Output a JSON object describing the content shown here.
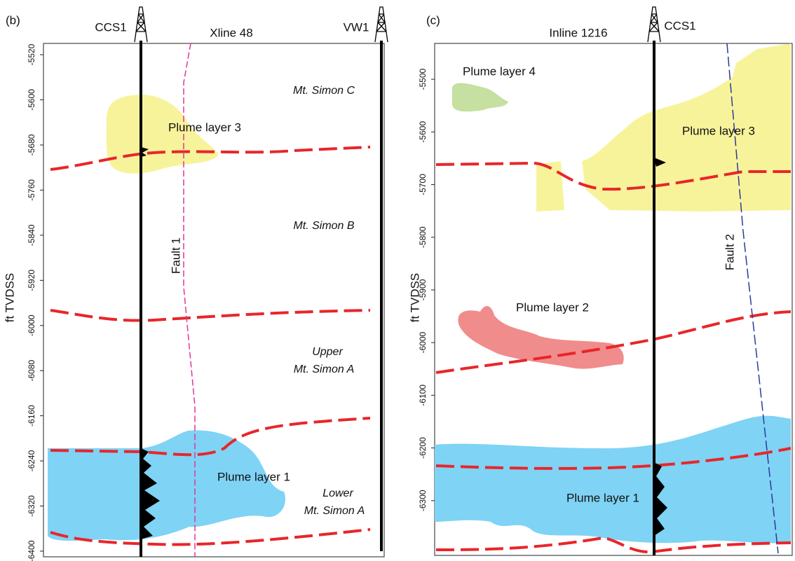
{
  "panels": [
    {
      "label": "(b)",
      "title": "Xline 48",
      "wells": [
        "CCS1",
        "VW1"
      ],
      "y_axis": {
        "label": "ft TVDSS",
        "ylim": [
          -5500,
          -6410
        ],
        "yticks": [
          -5520,
          -5600,
          -5680,
          -5760,
          -5840,
          -5920,
          -6000,
          -6080,
          -6160,
          -6240,
          -6320,
          -6400
        ]
      },
      "annotations": [
        "Mt. Simon C",
        "Mt. Simon B",
        "Upper",
        "Mt. Simon A",
        "Lower",
        "Mt. Simon A",
        "Plume layer 3",
        "Plume layer 1",
        "Fault 1"
      ]
    },
    {
      "label": "(c)",
      "title": "Inline 1216",
      "wells": [
        "CCS1"
      ],
      "y_axis": {
        "label": "ft TVDSS",
        "ylim": [
          -5432,
          -6404
        ],
        "yticks": [
          -5500,
          -5600,
          -5700,
          -5800,
          -5900,
          -6000,
          -6100,
          -6200,
          -6300
        ]
      },
      "annotations": [
        "Plume layer 4",
        "Plume layer 3",
        "Plume layer 2",
        "Plume layer 1",
        "Fault 2"
      ]
    }
  ]
}
